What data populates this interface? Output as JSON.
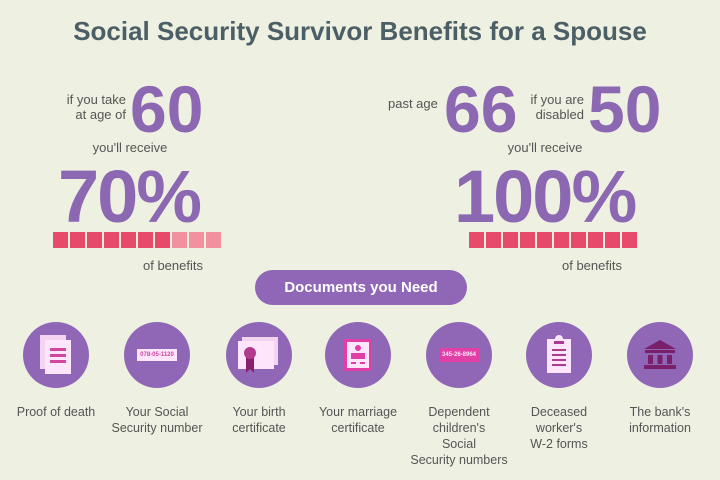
{
  "title": "Social Security Survivor Benefits for a Spouse",
  "left": {
    "prefix": [
      "if you take",
      "at age of"
    ],
    "age": "60",
    "receive": "you'll receive",
    "percent": "70%",
    "benefit_fraction": 0.7,
    "suffix": "of benefits"
  },
  "right": {
    "prefix": "past age",
    "age": "66",
    "middle": [
      "if you are",
      "disabled"
    ],
    "age2": "50",
    "receive": "you'll receive",
    "percent": "100%",
    "benefit_fraction": 1.0,
    "suffix": "of benefits"
  },
  "colors": {
    "accent": "#9067b6",
    "bar_filled": "#e84a6a",
    "bar_empty": "#f2909f",
    "title": "#4d5f66",
    "background": "#eef0e1"
  },
  "docs_button": "Documents you Need",
  "documents": [
    {
      "icon": "document-icon",
      "label": [
        "Proof of death"
      ]
    },
    {
      "icon": "ssn-card-icon",
      "icon_text": "078-05-1120",
      "label": [
        "Your Social",
        "Security number"
      ]
    },
    {
      "icon": "certificate-icon",
      "label": [
        "Your birth",
        "certificate"
      ]
    },
    {
      "icon": "marriage-certificate-icon",
      "label": [
        "Your marriage",
        "certificate"
      ]
    },
    {
      "icon": "ssn-card-icon",
      "icon_text": "345-26-8964",
      "label": [
        "Dependent",
        "children's",
        "Social",
        "Security numbers"
      ]
    },
    {
      "icon": "clipboard-icon",
      "label": [
        "Deceased",
        "worker's",
        "W-2 forms"
      ]
    },
    {
      "icon": "bank-icon",
      "label": [
        "The bank's",
        "information"
      ]
    }
  ]
}
